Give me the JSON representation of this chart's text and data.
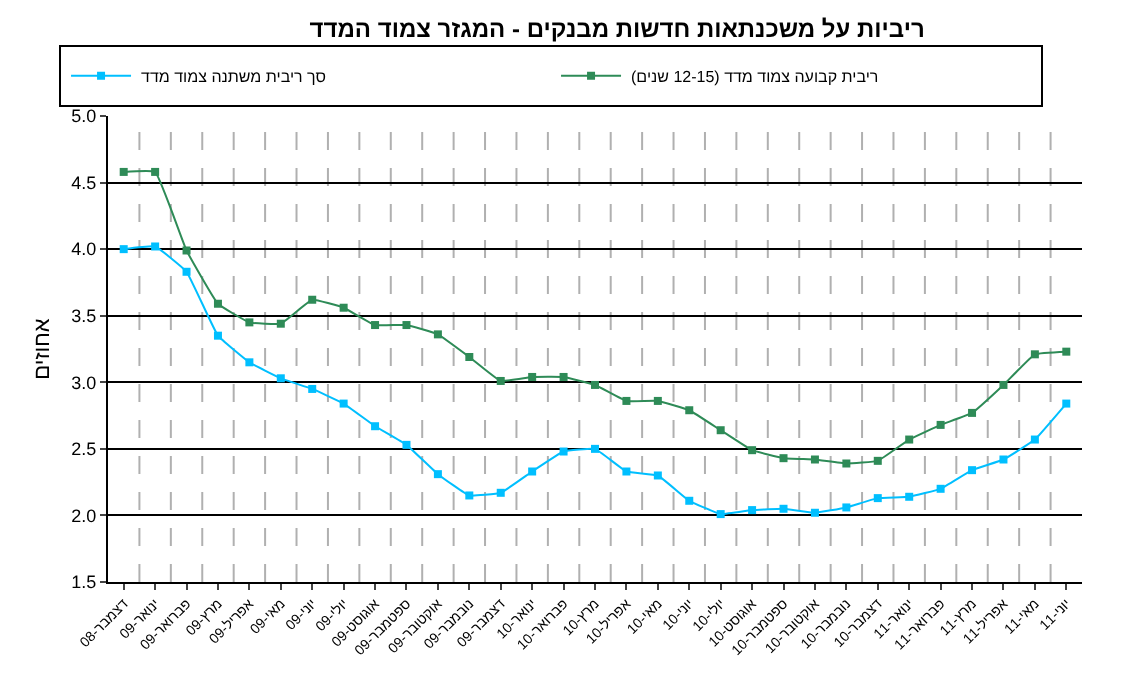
{
  "chart_data": {
    "type": "line",
    "title": "ריביות על משכנתאות חדשות מבנקים - המגזר צמוד המדד",
    "ylabel": "אחוזים",
    "categories": [
      "דצמבר-08",
      "ינואר-09",
      "פברואר-09",
      "מרץ-09",
      "אפריל-09",
      "מאי-09",
      "יוני-09",
      "יולי-09",
      "אוגוסט-09",
      "ספטמבר-09",
      "אוקטובר-09",
      "נובמבר-09",
      "דצמבר-09",
      "ינואר-10",
      "פברואר-10",
      "מרץ-10",
      "אפריל-10",
      "מאי-10",
      "יוני-10",
      "יולי-10",
      "אוגוסט-10",
      "ספטמבר-10",
      "אוקטובר-10",
      "נובמבר-10",
      "דצמבר-10",
      "ינואר-11",
      "פברואר-11",
      "מרץ-11",
      "אפריל-11",
      "מאי-11",
      "יוני-11"
    ],
    "series": [
      {
        "name": "ריבית קבועה צמוד מדד (12-15 שנים)",
        "color": "#2e8b57",
        "values": [
          4.58,
          4.58,
          3.99,
          3.59,
          3.45,
          3.44,
          3.62,
          3.56,
          3.43,
          3.43,
          3.36,
          3.19,
          3.01,
          3.04,
          3.04,
          2.98,
          2.86,
          2.86,
          2.79,
          2.64,
          2.49,
          2.43,
          2.42,
          2.39,
          2.41,
          2.57,
          2.68,
          2.77,
          2.98,
          3.21,
          3.23
        ]
      },
      {
        "name": "סך ריבית משתנה צמוד מדד",
        "color": "#00bfff",
        "values": [
          4.0,
          4.02,
          3.83,
          3.35,
          3.15,
          3.03,
          2.95,
          2.84,
          2.67,
          2.53,
          2.31,
          2.15,
          2.17,
          2.33,
          2.48,
          2.5,
          2.33,
          2.3,
          2.11,
          2.01,
          2.04,
          2.05,
          2.02,
          2.06,
          2.13,
          2.14,
          2.2,
          2.34,
          2.42,
          2.57,
          2.84
        ]
      }
    ],
    "ylim": [
      1.5,
      5.0
    ],
    "yticks": [
      {
        "value": 1.5,
        "label": "1.5"
      },
      {
        "value": 2,
        "label": "2.0"
      },
      {
        "value": 2.5,
        "label": "2.5"
      },
      {
        "value": 3,
        "label": "3.0"
      },
      {
        "value": 3.5,
        "label": "3.5"
      },
      {
        "value": 4,
        "label": "4.0"
      },
      {
        "value": 4.5,
        "label": "4.5"
      },
      {
        "value": 5,
        "label": "5.0"
      }
    ],
    "grid": true,
    "legend": "top",
    "marker": "square",
    "line_style": "solid"
  }
}
